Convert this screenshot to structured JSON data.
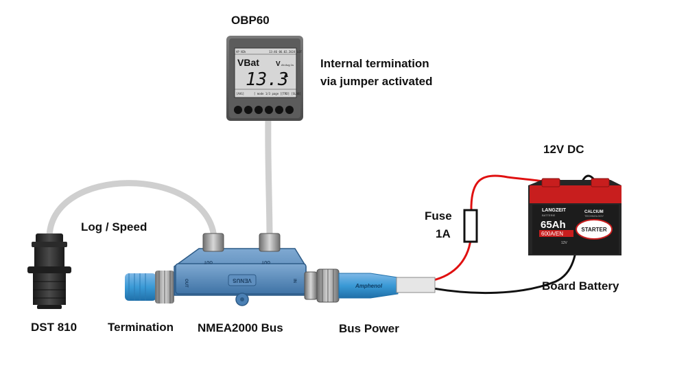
{
  "labels": {
    "display": "OBP60",
    "internal_termination_1": "Internal termination",
    "internal_termination_2": "via jumper activated",
    "voltage": "12V DC",
    "fuse": "Fuse",
    "fuse_rating": "1A",
    "log_speed": "Log / Speed",
    "board_battery": "Board Battery",
    "sensor": "DST 810",
    "termination": "Termination",
    "bus": "NMEA2000 Bus",
    "bus_power": "Bus Power"
  },
  "display_screen": {
    "top_left": "AP N2k",
    "top_right": "13:46 06.02.2024 LOT",
    "title": "VBat",
    "unit": "V",
    "unit_suffix": "Ah Avg 1s",
    "value": "13.3",
    "bottom_left": "[AVG]",
    "bottom_center": "[ mode 1/3 page ]",
    "bottom_right": "[TRD] [SLAB]"
  },
  "battery": {
    "brand": "LANGZEIT",
    "brand_sub": "BATTERIE",
    "capacity": "65Ah",
    "cca": "600A/EN",
    "voltage_mark": "12V",
    "badge": "STARTER",
    "tech": "CALCIUM",
    "tech_sub": "TECHNOLOGY"
  },
  "connector": {
    "tee_logo": "VENUS",
    "out_left": "OUT",
    "out_right": "OUT",
    "in_left": "OUT",
    "in_right": "IN",
    "cable_brand": "Amphenol"
  },
  "colors": {
    "cable_grey": "#cfcfcf",
    "wire_red": "#e01010",
    "wire_black": "#111111",
    "tee_blue": "#5b8fc0",
    "connector_blue": "#3aa0d8",
    "nut_grey": "#8a8a8a",
    "battery_red": "#c81e1e",
    "battery_body": "#2a2a2a"
  }
}
